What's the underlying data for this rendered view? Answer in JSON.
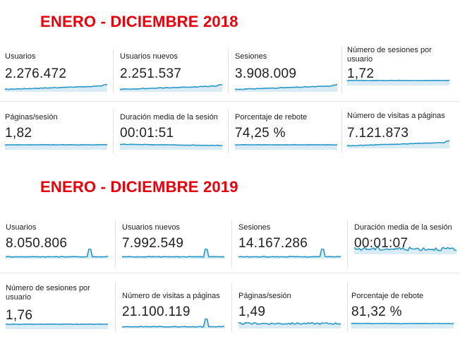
{
  "colors": {
    "heading": "#e8000b",
    "line": "#2a97c9",
    "fill": "#d9ecf6",
    "text": "#212121"
  },
  "sections": [
    {
      "title": "ENERO - DICIEMBRE 2018",
      "metrics": [
        {
          "label": "Usuarios",
          "value": "2.276.472",
          "trend": "rising"
        },
        {
          "label": "Usuarios nuevos",
          "value": "2.251.537",
          "trend": "rising"
        },
        {
          "label": "Sesiones",
          "value": "3.908.009",
          "trend": "rising"
        },
        {
          "label": "Número de sesiones por usuario",
          "value": "1,72",
          "trend": "flat"
        },
        {
          "label": "Páginas/sesión",
          "value": "1,82",
          "trend": "flat"
        },
        {
          "label": "Duración media de la sesión",
          "value": "00:01:51",
          "trend": "flat-down"
        },
        {
          "label": "Porcentaje de rebote",
          "value": "74,25 %",
          "trend": "flat"
        },
        {
          "label": "Número de visitas a páginas",
          "value": "7.121.873",
          "trend": "rising"
        }
      ]
    },
    {
      "title": "ENERO - DICIEMBRE 2019",
      "metrics": [
        {
          "label": "Usuarios",
          "value": "8.050.806",
          "trend": "spike"
        },
        {
          "label": "Usuarios nuevos",
          "value": "7.992.549",
          "trend": "spike"
        },
        {
          "label": "Sesiones",
          "value": "14.167.286",
          "trend": "spike"
        },
        {
          "label": "Duración media de la sesión",
          "value": "00:01:07",
          "trend": "noisy"
        },
        {
          "label": "Número de sesiones por usuario",
          "value": "1,76",
          "trend": "flat"
        },
        {
          "label": "Número de visitas a páginas",
          "value": "21.100.119",
          "trend": "spike"
        },
        {
          "label": "Páginas/sesión",
          "value": "1,49",
          "trend": "noisy-flat"
        },
        {
          "label": "Porcentaje de rebote",
          "value": "81,32 %",
          "trend": "flat"
        }
      ]
    }
  ]
}
